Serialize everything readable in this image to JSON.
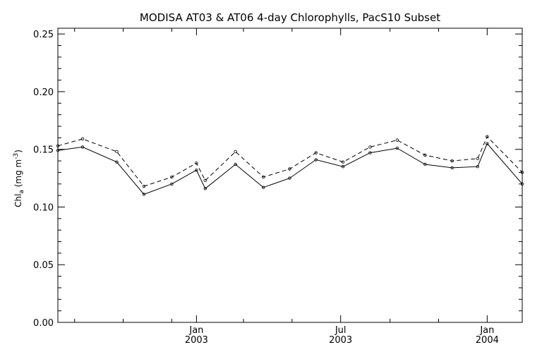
{
  "chart_data": {
    "type": "line",
    "title": "MODISA AT03 & AT06 4-day Chlorophylls, PacS10 Subset",
    "ylabel": {
      "prefix": "Chl",
      "subscript": "a",
      "middle": " (mg m",
      "superscript": "-3",
      "suffix": ")"
    },
    "xlim": [
      "2002-07-11",
      "2004-02-14"
    ],
    "ylim": [
      0.0,
      0.255
    ],
    "yticks": [
      {
        "value": 0.0,
        "label": "0.00"
      },
      {
        "value": 0.05,
        "label": "0.05"
      },
      {
        "value": 0.1,
        "label": "0.10"
      },
      {
        "value": 0.15,
        "label": "0.15"
      },
      {
        "value": 0.2,
        "label": "0.20"
      },
      {
        "value": 0.25,
        "label": "0.25"
      }
    ],
    "xticks_major": [
      {
        "date": "2003-01-01",
        "label_top": "Jan",
        "label_bottom": "2003"
      },
      {
        "date": "2003-07-01",
        "label_top": "Jul",
        "label_bottom": "2003"
      },
      {
        "date": "2004-01-01",
        "label_top": "Jan",
        "label_bottom": "2004"
      }
    ],
    "xticks_minor": [
      "2002-08-01",
      "2002-10-01",
      "2002-12-01",
      "2003-03-01",
      "2003-05-01",
      "2003-09-01",
      "2003-11-01"
    ],
    "grid": false,
    "series": [
      {
        "style": "solid",
        "color": "#000000",
        "x": [
          "2002-07-11",
          "2002-08-11",
          "2002-09-23",
          "2002-10-27",
          "2002-12-01",
          "2003-01-01",
          "2003-01-12",
          "2003-02-19",
          "2003-03-26",
          "2003-04-28",
          "2003-05-31",
          "2003-07-04",
          "2003-08-07",
          "2003-09-10",
          "2003-10-15",
          "2003-11-18",
          "2003-12-20",
          "2004-01-01",
          "2004-02-14"
        ],
        "values": [
          0.149,
          0.152,
          0.139,
          0.111,
          0.12,
          0.132,
          0.116,
          0.137,
          0.117,
          0.125,
          0.141,
          0.135,
          0.147,
          0.151,
          0.137,
          0.134,
          0.135,
          0.155,
          0.12
        ]
      },
      {
        "style": "dashed",
        "color": "#000000",
        "x": [
          "2002-07-11",
          "2002-08-11",
          "2002-09-23",
          "2002-10-27",
          "2002-12-01",
          "2003-01-01",
          "2003-01-12",
          "2003-02-19",
          "2003-03-26",
          "2003-04-28",
          "2003-05-31",
          "2003-07-04",
          "2003-08-07",
          "2003-09-10",
          "2003-10-15",
          "2003-11-18",
          "2003-12-20",
          "2004-01-01",
          "2004-02-14"
        ],
        "values": [
          0.153,
          0.159,
          0.148,
          0.118,
          0.126,
          0.138,
          0.123,
          0.148,
          0.126,
          0.133,
          0.147,
          0.139,
          0.152,
          0.158,
          0.145,
          0.14,
          0.142,
          0.161,
          0.13
        ]
      }
    ]
  }
}
